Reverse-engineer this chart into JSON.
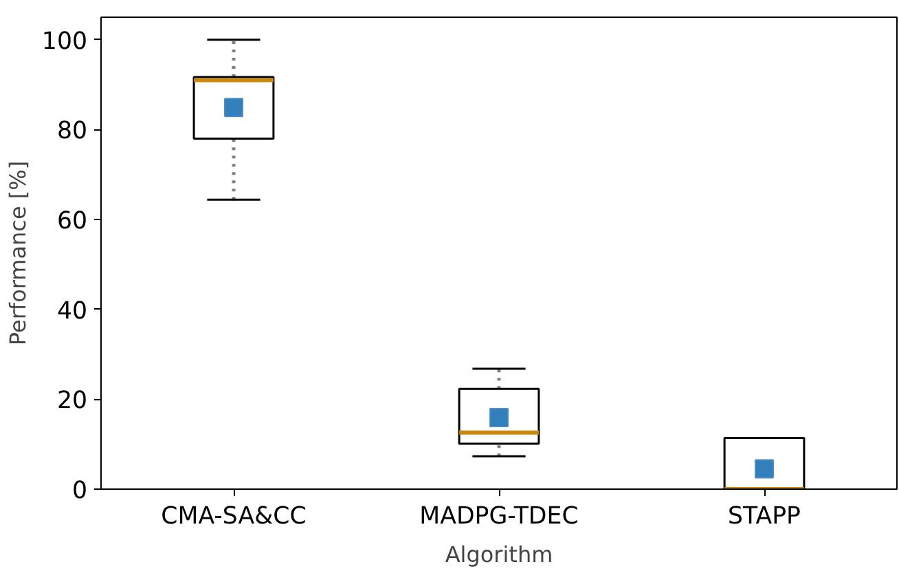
{
  "chart_data": {
    "type": "box",
    "xlabel": "Algorithm",
    "ylabel": "Performance [%]",
    "categories": [
      "CMA-SA&CC",
      "MADPG-TDEC",
      "STAPP"
    ],
    "boxes": [
      {
        "low": 64.4,
        "q1": 78.0,
        "median": 91.0,
        "q3": 91.7,
        "high": 100,
        "mean": 84.9
      },
      {
        "low": 7.3,
        "q1": 10.1,
        "median": 12.6,
        "q3": 22.3,
        "high": 26.8,
        "mean": 15.9
      },
      {
        "low": 0,
        "q1": 0,
        "median": 0,
        "q3": 11.4,
        "high": 11.4,
        "mean": 4.5
      }
    ],
    "ylim": [
      0,
      105
    ],
    "yticks": [
      0,
      20,
      40,
      60,
      80,
      100
    ],
    "grid": false,
    "marker": "square"
  }
}
